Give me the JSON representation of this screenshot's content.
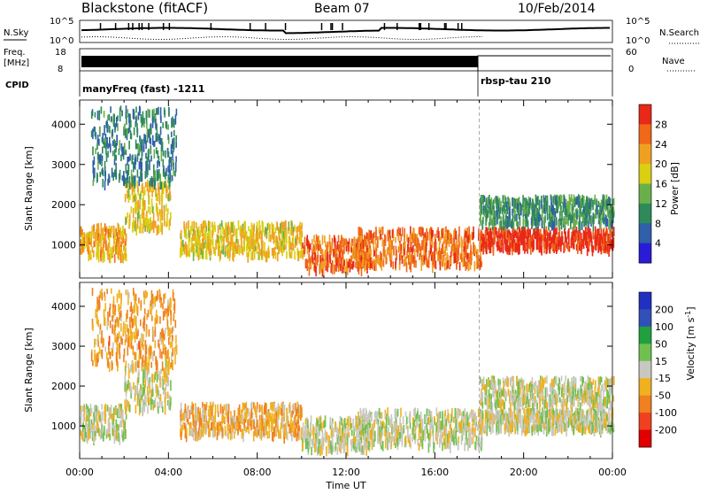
{
  "header": {
    "title": "Blackstone (fitACF)",
    "beam": "Beam 07",
    "date": "10/Feb/2014"
  },
  "noise_panel": {
    "left_label": "N.Sky",
    "left_ticks": [
      "10^5",
      "10^0"
    ],
    "right_label": "N.Search",
    "right_ticks": [
      "10^5",
      "10^0"
    ]
  },
  "freq_panel": {
    "label_line1": "Freq.",
    "label_line2": "[MHz]",
    "left_ticks": [
      "18",
      "8"
    ],
    "right_label": "Nave",
    "right_ticks": [
      "60",
      "0"
    ]
  },
  "cpid_panel": {
    "label": "CPID",
    "programs": [
      {
        "name": "manyFreq (fast) -1211",
        "start_hour": 0
      },
      {
        "name": "rbsp-tau 210",
        "start_hour": 18
      }
    ]
  },
  "x_axis": {
    "label": "Time UT",
    "ticks": [
      "00:00",
      "04:00",
      "08:00",
      "12:00",
      "16:00",
      "20:00",
      "00:00"
    ],
    "range_hours": [
      0,
      24
    ]
  },
  "colors": {
    "power": [
      "#2a1cd6",
      "#2f5fa8",
      "#2f8a5a",
      "#6ab04a",
      "#d8d010",
      "#f0a020",
      "#f06818",
      "#e82818"
    ],
    "velocity": [
      "#2030c0",
      "#3050b8",
      "#20a040",
      "#70c050",
      "#c8c8c0",
      "#f0b020",
      "#f08020",
      "#f04020",
      "#e00000"
    ]
  },
  "chart_data": [
    {
      "type": "heatmap",
      "panel": "power",
      "ylabel": "Slant Range [km]",
      "ylim": [
        180,
        4600
      ],
      "yticks": [
        1000,
        2000,
        3000,
        4000
      ],
      "xlim": [
        0,
        24
      ],
      "colorbar": {
        "label": "Power [dB]",
        "ticks": [
          "28",
          "24",
          "20",
          "16",
          "12",
          "8",
          "4"
        ],
        "range": [
          0,
          30
        ]
      },
      "features": [
        {
          "t_start": 0.0,
          "t_end": 2.0,
          "range_low": 700,
          "range_high": 1500,
          "level": 20
        },
        {
          "t_start": 2.0,
          "t_end": 4.0,
          "range_low": 1400,
          "range_high": 2600,
          "level": 18
        },
        {
          "t_start": 0.5,
          "t_end": 4.3,
          "range_low": 2500,
          "range_high": 4400,
          "level": 8
        },
        {
          "t_start": 4.5,
          "t_end": 10.0,
          "range_low": 750,
          "range_high": 1550,
          "level": 18
        },
        {
          "t_start": 10.0,
          "t_end": 13.0,
          "range_low": 400,
          "range_high": 1200,
          "level": 24
        },
        {
          "t_start": 12.5,
          "t_end": 18.0,
          "range_low": 500,
          "range_high": 1400,
          "level": 24
        },
        {
          "t_start": 18.0,
          "t_end": 24.0,
          "range_low": 900,
          "range_high": 1400,
          "level": 28
        },
        {
          "t_start": 18.0,
          "t_end": 24.0,
          "range_low": 1500,
          "range_high": 2200,
          "level": 10
        }
      ]
    },
    {
      "type": "heatmap",
      "panel": "velocity",
      "ylabel": "Slant Range [km]",
      "ylim": [
        180,
        4600
      ],
      "yticks": [
        1000,
        2000,
        3000,
        4000
      ],
      "xlim": [
        0,
        24
      ],
      "colorbar": {
        "label": "Velocity [m s^-1]",
        "ticks": [
          "200",
          "100",
          "50",
          "15",
          "-15",
          "-50",
          "-100",
          "-200"
        ],
        "range": [
          -250,
          250
        ]
      },
      "features": [
        {
          "t_start": 0.0,
          "t_end": 2.0,
          "range_low": 700,
          "range_high": 1500,
          "velocity": 0
        },
        {
          "t_start": 2.0,
          "t_end": 4.0,
          "range_low": 1400,
          "range_high": 2600,
          "velocity": -5
        },
        {
          "t_start": 0.5,
          "t_end": 4.3,
          "range_low": 2500,
          "range_high": 4400,
          "velocity": -80
        },
        {
          "t_start": 4.5,
          "t_end": 10.0,
          "range_low": 750,
          "range_high": 1550,
          "velocity": -60
        },
        {
          "t_start": 10.0,
          "t_end": 13.0,
          "range_low": 400,
          "range_high": 1200,
          "velocity": 0
        },
        {
          "t_start": 12.5,
          "t_end": 18.0,
          "range_low": 500,
          "range_high": 1400,
          "velocity": 0
        },
        {
          "t_start": 18.0,
          "t_end": 24.0,
          "range_low": 900,
          "range_high": 1400,
          "velocity": 0
        },
        {
          "t_start": 18.0,
          "t_end": 24.0,
          "range_low": 1500,
          "range_high": 2200,
          "velocity": 0
        }
      ]
    }
  ]
}
